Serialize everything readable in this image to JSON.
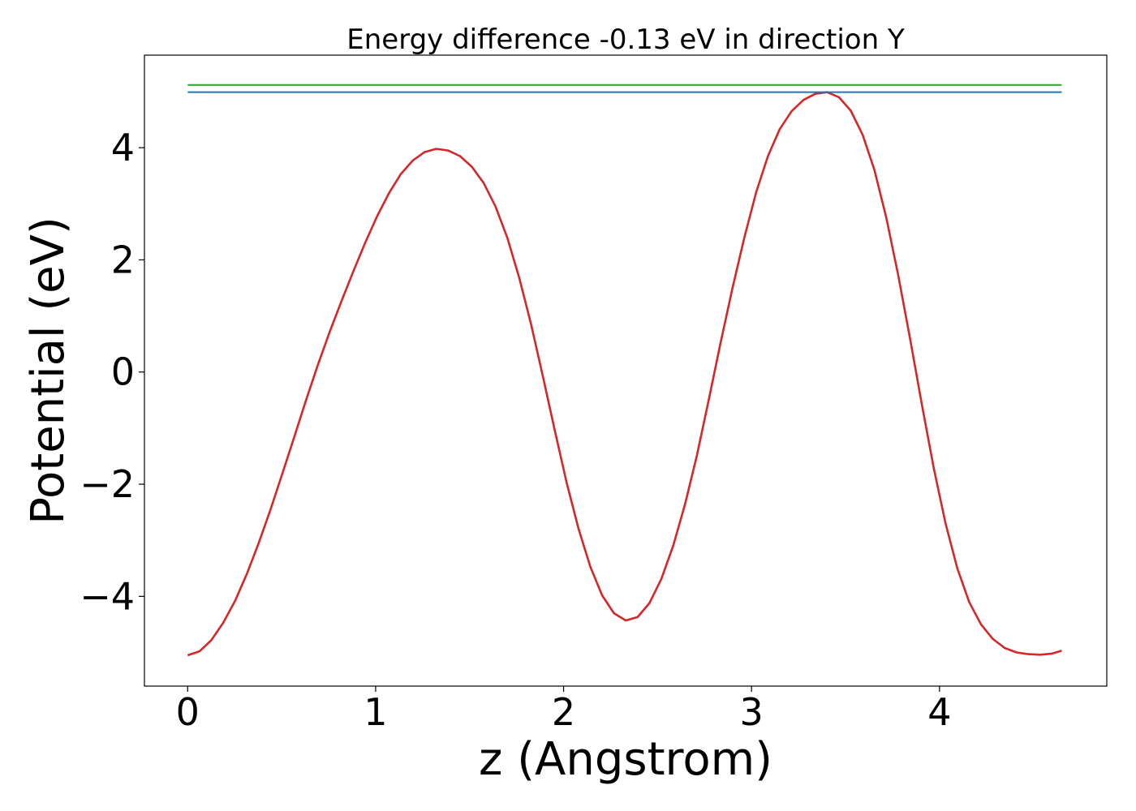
{
  "chart_data": {
    "type": "line",
    "title": "Energy difference -0.13 eV in direction Y",
    "xlabel": "z (Angstrom)",
    "ylabel": "Potential (eV)",
    "xlim": [
      -0.23,
      4.89
    ],
    "ylim": [
      -5.6,
      5.65
    ],
    "xticks": [
      0,
      1,
      2,
      3,
      4
    ],
    "yticks": [
      -4,
      -2,
      0,
      2,
      4
    ],
    "ytick_labels": [
      "−4",
      "−2",
      "0",
      "2",
      "4"
    ],
    "grid": false,
    "series": [
      {
        "color": "#d62728",
        "x": [
          0,
          0.063,
          0.126,
          0.189,
          0.252,
          0.315,
          0.378,
          0.441,
          0.504,
          0.567,
          0.63,
          0.693,
          0.756,
          0.819,
          0.882,
          0.945,
          1.008,
          1.071,
          1.134,
          1.197,
          1.26,
          1.323,
          1.386,
          1.449,
          1.512,
          1.575,
          1.638,
          1.701,
          1.764,
          1.827,
          1.89,
          1.953,
          2.016,
          2.079,
          2.142,
          2.205,
          2.268,
          2.331,
          2.394,
          2.457,
          2.52,
          2.583,
          2.646,
          2.709,
          2.772,
          2.835,
          2.898,
          2.961,
          3.024,
          3.087,
          3.15,
          3.213,
          3.276,
          3.339,
          3.402,
          3.465,
          3.528,
          3.591,
          3.654,
          3.717,
          3.78,
          3.843,
          3.906,
          3.969,
          4.032,
          4.095,
          4.158,
          4.221,
          4.284,
          4.347,
          4.41,
          4.473,
          4.536,
          4.599,
          4.65
        ],
        "y": [
          -5.05,
          -4.98,
          -4.78,
          -4.47,
          -4.08,
          -3.6,
          -3.05,
          -2.45,
          -1.81,
          -1.16,
          -0.5,
          0.13,
          0.72,
          1.27,
          1.8,
          2.31,
          2.78,
          3.19,
          3.53,
          3.77,
          3.92,
          3.98,
          3.95,
          3.85,
          3.66,
          3.37,
          2.95,
          2.39,
          1.68,
          0.85,
          -0.08,
          -1.04,
          -1.97,
          -2.79,
          -3.47,
          -3.98,
          -4.3,
          -4.43,
          -4.37,
          -4.12,
          -3.69,
          -3.1,
          -2.36,
          -1.49,
          -0.5,
          0.52,
          1.49,
          2.39,
          3.2,
          3.85,
          4.33,
          4.65,
          4.85,
          4.96,
          4.99,
          4.9,
          4.66,
          4.23,
          3.6,
          2.75,
          1.73,
          0.6,
          -0.58,
          -1.71,
          -2.7,
          -3.5,
          -4.1,
          -4.5,
          -4.76,
          -4.92,
          -5.0,
          -5.03,
          -5.04,
          -5.02,
          -4.97
        ]
      },
      {
        "color": "#1f77b4",
        "x": [
          0,
          4.65
        ],
        "y": [
          4.99,
          4.99
        ]
      },
      {
        "color": "#2ca02c",
        "x": [
          0,
          4.65
        ],
        "y": [
          5.12,
          5.12
        ]
      }
    ]
  }
}
